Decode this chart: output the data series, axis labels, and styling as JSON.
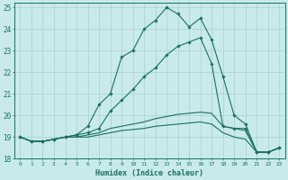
{
  "xlabel": "Humidex (Indice chaleur)",
  "xlim": [
    -0.5,
    23.5
  ],
  "ylim": [
    18,
    25.2
  ],
  "yticks": [
    18,
    19,
    20,
    21,
    22,
    23,
    24,
    25
  ],
  "xticks": [
    0,
    1,
    2,
    3,
    4,
    5,
    6,
    7,
    8,
    9,
    10,
    11,
    12,
    13,
    14,
    15,
    16,
    17,
    18,
    19,
    20,
    21,
    22,
    23
  ],
  "bg_color": "#c8eaea",
  "grid_color": "#aed4d4",
  "line_color": "#1a7060",
  "lines": [
    [
      19.0,
      18.8,
      18.8,
      18.9,
      19.0,
      19.1,
      19.5,
      20.5,
      21.0,
      22.7,
      23.0,
      24.0,
      24.4,
      25.0,
      24.7,
      24.1,
      24.5,
      23.5,
      21.8,
      20.0,
      19.6,
      18.3,
      18.3,
      18.5
    ],
    [
      19.0,
      18.8,
      18.8,
      18.9,
      19.0,
      19.1,
      19.2,
      19.4,
      20.2,
      20.7,
      21.2,
      21.8,
      22.2,
      22.8,
      23.2,
      23.4,
      23.6,
      22.4,
      19.5,
      19.4,
      19.4,
      18.3,
      18.3,
      18.5
    ],
    [
      19.0,
      18.8,
      18.8,
      18.9,
      19.0,
      19.0,
      19.1,
      19.2,
      19.4,
      19.5,
      19.6,
      19.7,
      19.85,
      19.95,
      20.05,
      20.1,
      20.15,
      20.1,
      19.5,
      19.4,
      19.3,
      18.3,
      18.3,
      18.5
    ],
    [
      19.0,
      18.8,
      18.8,
      18.9,
      19.0,
      19.0,
      19.0,
      19.1,
      19.2,
      19.3,
      19.35,
      19.4,
      19.5,
      19.55,
      19.6,
      19.65,
      19.7,
      19.6,
      19.2,
      19.0,
      18.9,
      18.3,
      18.3,
      18.5
    ]
  ],
  "markers": [
    true,
    true,
    false,
    false
  ]
}
